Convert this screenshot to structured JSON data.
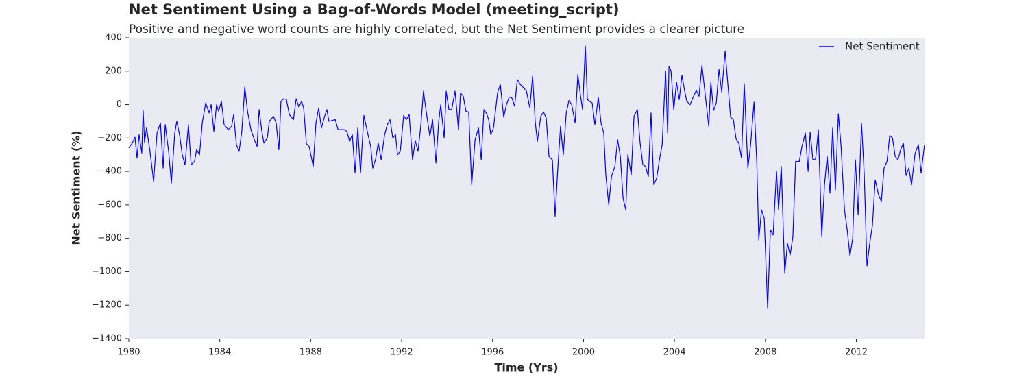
{
  "chart_data": {
    "type": "line",
    "title": "Net Sentiment Using a Bag-of-Words Model (meeting_script)",
    "subtitle": "Positive and negative word counts are highly correlated, but the Net Sentiment provides a clearer picture",
    "x_label": "Time (Yrs)",
    "y_label": "Net Sentiment (%)",
    "xlim": [
      1980,
      2015
    ],
    "xticks": [
      1980,
      1984,
      1988,
      1992,
      1996,
      2000,
      2004,
      2008,
      2012
    ],
    "ylim": [
      -1400,
      400
    ],
    "yticks": [
      {
        "value": -1400,
        "label": "−1400"
      },
      {
        "value": -1200,
        "label": "−1200"
      },
      {
        "value": -1000,
        "label": "−1000"
      },
      {
        "value": -800,
        "label": "−800"
      },
      {
        "value": -600,
        "label": "−600"
      },
      {
        "value": -400,
        "label": "−400"
      },
      {
        "value": -200,
        "label": "−200"
      },
      0,
      200,
      400
    ],
    "grid": false,
    "legend": "upper right",
    "background": "#eaeaf2",
    "x": [
      1980.0,
      1980.15,
      1980.27,
      1980.36,
      1980.45,
      1980.57,
      1980.63,
      1980.69,
      1980.78,
      1980.93,
      1981.09,
      1981.24,
      1981.39,
      1981.51,
      1981.6,
      1981.75,
      1981.87,
      1982.02,
      1982.11,
      1982.23,
      1982.35,
      1982.47,
      1982.62,
      1982.74,
      1982.89,
      1982.98,
      1983.11,
      1983.23,
      1983.38,
      1983.53,
      1983.62,
      1983.74,
      1983.86,
      1983.95,
      1984.07,
      1984.19,
      1984.37,
      1984.52,
      1984.61,
      1984.73,
      1984.85,
      1984.97,
      1985.1,
      1985.22,
      1985.37,
      1985.52,
      1985.64,
      1985.73,
      1985.85,
      1985.94,
      1986.09,
      1986.18,
      1986.36,
      1986.48,
      1986.6,
      1986.69,
      1986.81,
      1986.93,
      1987.06,
      1987.24,
      1987.36,
      1987.48,
      1987.6,
      1987.69,
      1987.81,
      1987.93,
      1988.11,
      1988.23,
      1988.35,
      1988.47,
      1988.59,
      1988.71,
      1988.8,
      1988.95,
      1989.08,
      1989.2,
      1989.47,
      1989.59,
      1989.71,
      1989.83,
      1989.95,
      1990.07,
      1990.19,
      1990.34,
      1990.52,
      1990.64,
      1990.73,
      1990.85,
      1990.97,
      1991.1,
      1991.25,
      1991.37,
      1991.49,
      1991.61,
      1991.73,
      1991.82,
      1991.94,
      1992.09,
      1992.21,
      1992.33,
      1992.48,
      1992.6,
      1992.72,
      1992.84,
      1992.96,
      1993.09,
      1993.24,
      1993.36,
      1993.51,
      1993.63,
      1993.72,
      1993.87,
      1993.96,
      1994.08,
      1994.2,
      1994.35,
      1994.5,
      1994.59,
      1994.71,
      1994.83,
      1994.95,
      1995.08,
      1995.23,
      1995.38,
      1995.5,
      1995.62,
      1995.74,
      1995.83,
      1995.92,
      1996.04,
      1996.22,
      1996.34,
      1996.49,
      1996.61,
      1996.73,
      1996.85,
      1996.97,
      1997.09,
      1997.22,
      1997.37,
      1997.49,
      1997.64,
      1997.76,
      1997.88,
      1997.97,
      1998.12,
      1998.24,
      1998.36,
      1998.48,
      1998.63,
      1998.75,
      1998.87,
      1998.99,
      1999.11,
      1999.24,
      1999.36,
      1999.48,
      1999.63,
      1999.75,
      1999.87,
      1999.96,
      2000.08,
      2000.17,
      2000.26,
      2000.38,
      2000.5,
      2000.65,
      2000.77,
      2000.89,
      2000.98,
      2001.11,
      2001.23,
      2001.38,
      2001.5,
      2001.62,
      2001.74,
      2001.86,
      2001.95,
      2002.1,
      2002.22,
      2002.37,
      2002.49,
      2002.61,
      2002.73,
      2002.85,
      2002.97,
      2003.09,
      2003.22,
      2003.34,
      2003.46,
      2003.61,
      2003.7,
      2003.76,
      2003.85,
      2003.97,
      2004.09,
      2004.21,
      2004.33,
      2004.45,
      2004.54,
      2004.69,
      2004.81,
      2004.96,
      2005.08,
      2005.21,
      2005.3,
      2005.51,
      2005.6,
      2005.72,
      2005.84,
      2005.96,
      2006.08,
      2006.23,
      2006.32,
      2006.47,
      2006.59,
      2006.71,
      2006.83,
      2006.95,
      2007.07,
      2007.23,
      2007.35,
      2007.5,
      2007.62,
      2007.71,
      2007.83,
      2007.95,
      2008.1,
      2008.22,
      2008.34,
      2008.49,
      2008.58,
      2008.7,
      2008.85,
      2008.97,
      2009.09,
      2009.21,
      2009.33,
      2009.49,
      2009.61,
      2009.76,
      2009.88,
      2009.97,
      2010.09,
      2010.21,
      2010.33,
      2010.48,
      2010.6,
      2010.72,
      2010.84,
      2010.96,
      2011.08,
      2011.21,
      2011.33,
      2011.48,
      2011.6,
      2011.72,
      2011.84,
      2011.96,
      2012.08,
      2012.23,
      2012.35,
      2012.47,
      2012.59,
      2012.71,
      2012.83,
      2012.98,
      2013.1,
      2013.22,
      2013.35,
      2013.47,
      2013.59,
      2013.71,
      2013.83,
      2013.95,
      2014.07,
      2014.19,
      2014.31,
      2014.43,
      2014.58,
      2014.73,
      2014.85,
      2015.0
    ],
    "series": [
      {
        "name": "Net Sentiment",
        "color": "#0000ff",
        "values": [
          -260,
          -230,
          -195,
          -320,
          -180,
          -290,
          -35,
          -225,
          -140,
          -280,
          -460,
          -170,
          -110,
          -380,
          -120,
          -280,
          -470,
          -170,
          -100,
          -180,
          -300,
          -360,
          -120,
          -360,
          -340,
          -270,
          -300,
          -110,
          10,
          -50,
          0,
          -160,
          0,
          -40,
          20,
          -120,
          -150,
          -130,
          -60,
          -240,
          -280,
          -160,
          105,
          -40,
          -150,
          -210,
          -250,
          -30,
          -160,
          -230,
          -200,
          -100,
          -70,
          -110,
          -270,
          20,
          35,
          30,
          -60,
          -90,
          35,
          -15,
          20,
          -20,
          -235,
          -250,
          -370,
          -110,
          -20,
          -140,
          -80,
          -30,
          -100,
          -95,
          -90,
          -150,
          -150,
          -160,
          -220,
          -180,
          -410,
          -140,
          -410,
          -65,
          -180,
          -250,
          -380,
          -330,
          -230,
          -330,
          -180,
          -120,
          -90,
          -200,
          -180,
          -300,
          -280,
          -65,
          -90,
          -60,
          -330,
          -215,
          -280,
          -130,
          80,
          -50,
          -190,
          -90,
          -350,
          -100,
          0,
          -200,
          80,
          -30,
          -30,
          80,
          -150,
          70,
          50,
          -40,
          -45,
          -480,
          -210,
          -140,
          -330,
          -30,
          -55,
          -90,
          -180,
          -140,
          70,
          120,
          -75,
          0,
          45,
          40,
          -10,
          150,
          120,
          100,
          80,
          -20,
          170,
          -110,
          -220,
          -70,
          -45,
          -80,
          -310,
          -330,
          -670,
          -380,
          -130,
          -300,
          -50,
          25,
          0,
          -110,
          180,
          50,
          -30,
          350,
          30,
          20,
          10,
          -120,
          45,
          -110,
          -170,
          -420,
          -600,
          -430,
          -370,
          -210,
          -310,
          -560,
          -630,
          -300,
          -420,
          -70,
          -30,
          -230,
          -360,
          -370,
          -430,
          -50,
          -480,
          -440,
          -330,
          -240,
          200,
          -170,
          230,
          200,
          -30,
          135,
          30,
          175,
          80,
          20,
          0,
          40,
          85,
          50,
          235,
          125,
          -130,
          135,
          -35,
          10,
          210,
          75,
          320,
          170,
          -75,
          -90,
          -205,
          -230,
          -320,
          125,
          -380,
          -240,
          15,
          -340,
          -810,
          -630,
          -680,
          -1220,
          -750,
          -780,
          -400,
          -630,
          -370,
          -1010,
          -830,
          -900,
          -790,
          -340,
          -340,
          -250,
          -170,
          -400,
          -165,
          -330,
          -325,
          -150,
          -790,
          -480,
          -310,
          -530,
          -140,
          -510,
          -55,
          -250,
          -630,
          -750,
          -905,
          -800,
          -330,
          -660,
          -115,
          -420,
          -965,
          -830,
          -720,
          -450,
          -540,
          -580,
          -380,
          -340,
          -185,
          -200,
          -310,
          -330,
          -270,
          -230,
          -425,
          -380,
          -480,
          -295,
          -240,
          -410,
          -240
        ]
      }
    ]
  }
}
